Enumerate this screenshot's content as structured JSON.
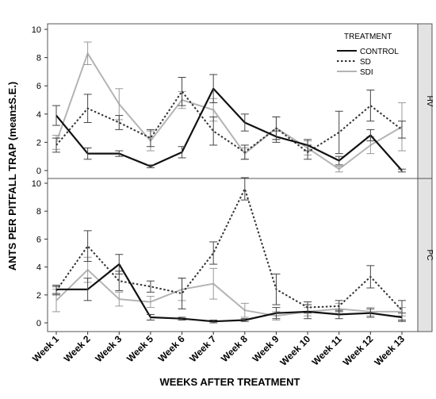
{
  "chart_data": {
    "type": "line",
    "xlabel": "WEEKS AFTER TREATMENT",
    "ylabel": "ANTS PER PITFALL TRAP  (mean±S.E.)",
    "categories": [
      "Week 1",
      "Week 2",
      "Week 3",
      "Week 5",
      "Week 6",
      "Week 7",
      "Week 8",
      "Week 9",
      "Week 10",
      "Week 11",
      "Week 12",
      "Week 13"
    ],
    "legend": {
      "title": "TREATMENT",
      "entries": [
        {
          "name": "CONTROL",
          "color": "#111111",
          "style": "solid"
        },
        {
          "name": "SD",
          "color": "#333333",
          "style": "dotted"
        },
        {
          "name": "SDI",
          "color": "#b4b4b4",
          "style": "solid"
        }
      ]
    },
    "panels": [
      {
        "strip": "HV",
        "ylim": [
          0,
          10
        ],
        "yticks": [
          "0",
          "2",
          "4",
          "6",
          "8",
          "10"
        ],
        "series": [
          {
            "name": "CONTROL",
            "values": [
              3.9,
              1.2,
              1.2,
              0.3,
              1.3,
              5.8,
              3.4,
              2.4,
              1.8,
              0.7,
              2.5,
              0.0
            ],
            "err": [
              0.7,
              0.4,
              0.2,
              0.1,
              0.4,
              1.0,
              0.6,
              0.4,
              0.4,
              0.3,
              0.4,
              0.1
            ]
          },
          {
            "name": "SD",
            "values": [
              1.8,
              4.4,
              3.4,
              2.3,
              5.6,
              2.8,
              1.3,
              3.0,
              1.3,
              2.7,
              4.6,
              2.9
            ],
            "err": [
              0.5,
              1.0,
              0.5,
              0.6,
              1.0,
              1.0,
              0.5,
              0.8,
              0.5,
              1.5,
              1.1,
              0.6
            ]
          },
          {
            "name": "SDI",
            "values": [
              2.0,
              8.3,
              4.7,
              2.1,
              5.0,
              4.3,
              1.2,
              3.0,
              1.6,
              0.1,
              1.8,
              3.1
            ],
            "err": [
              0.5,
              0.8,
              1.1,
              0.7,
              0.6,
              0.8,
              0.4,
              0.8,
              0.5,
              0.2,
              0.6,
              1.7
            ]
          }
        ]
      },
      {
        "strip": "PC",
        "ylim": [
          0,
          10
        ],
        "yticks": [
          "0",
          "2",
          "4",
          "6",
          "8",
          "10"
        ],
        "series": [
          {
            "name": "CONTROL",
            "values": [
              2.4,
              2.4,
              4.2,
              0.4,
              0.3,
              0.1,
              0.2,
              0.7,
              0.8,
              0.6,
              0.7,
              0.4
            ],
            "err": [
              0.3,
              0.8,
              0.7,
              0.2,
              0.1,
              0.1,
              0.1,
              0.4,
              0.5,
              0.3,
              0.3,
              0.3
            ]
          },
          {
            "name": "SD",
            "values": [
              2.3,
              5.5,
              3.0,
              2.6,
              2.1,
              5.0,
              9.6,
              2.4,
              1.1,
              1.2,
              3.3,
              0.9
            ],
            "err": [
              0.3,
              1.1,
              0.7,
              0.4,
              1.1,
              0.8,
              0.8,
              1.1,
              0.4,
              0.4,
              0.8,
              0.7
            ]
          },
          {
            "name": "SDI",
            "values": [
              1.6,
              3.8,
              1.7,
              1.5,
              2.4,
              2.8,
              0.9,
              0.5,
              0.8,
              1.0,
              0.8,
              0.8
            ],
            "err": [
              0.8,
              0.9,
              0.5,
              0.4,
              0.8,
              1.1,
              0.5,
              0.3,
              0.3,
              0.4,
              0.3,
              0.3
            ]
          }
        ]
      }
    ]
  }
}
